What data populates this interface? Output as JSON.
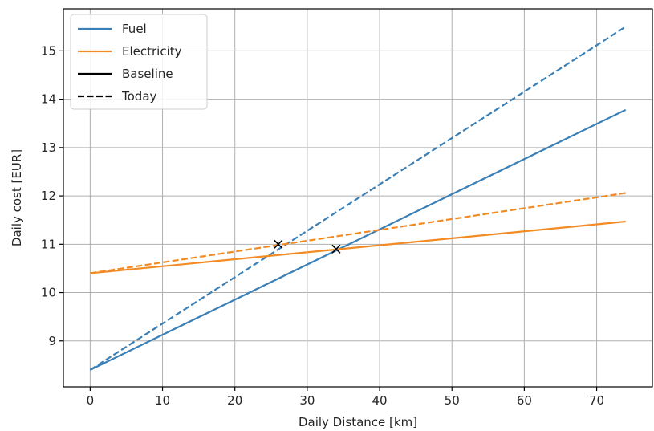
{
  "chart_data": {
    "type": "line",
    "title": "",
    "xlabel": "Daily Distance [km]",
    "ylabel": "Daily cost [EUR]",
    "xlim": [
      -3.7,
      77.7
    ],
    "ylim": [
      8.05,
      15.87
    ],
    "xticks": [
      0,
      10,
      20,
      30,
      40,
      50,
      60,
      70
    ],
    "yticks": [
      9,
      10,
      11,
      12,
      13,
      14,
      15
    ],
    "grid": true,
    "legend_position": "top-left",
    "colors": {
      "fuel": "#3a7fb5",
      "electricity": "#f28b24",
      "marker": "#000000"
    },
    "legend": [
      {
        "label": "Fuel",
        "color": "#3a7fb5",
        "style": "solid"
      },
      {
        "label": "Electricity",
        "color": "#f28b24",
        "style": "solid"
      },
      {
        "label": "Baseline",
        "color": "#000000",
        "style": "solid"
      },
      {
        "label": "Today",
        "color": "#000000",
        "style": "dashed"
      }
    ],
    "series": [
      {
        "color": "#3a7fb5",
        "style": "solid",
        "x": [
          0,
          74
        ],
        "y": [
          8.4,
          13.78
        ]
      },
      {
        "color": "#3a7fb5",
        "style": "dashed",
        "x": [
          0,
          74
        ],
        "y": [
          8.4,
          15.5
        ]
      },
      {
        "color": "#f28b24",
        "style": "solid",
        "x": [
          0,
          74
        ],
        "y": [
          10.4,
          11.47
        ]
      },
      {
        "color": "#f28b24",
        "style": "dashed",
        "x": [
          0,
          74
        ],
        "y": [
          10.4,
          12.06
        ]
      }
    ],
    "markers": [
      {
        "x": 26,
        "y": 11.0
      },
      {
        "x": 34,
        "y": 10.9
      }
    ]
  }
}
